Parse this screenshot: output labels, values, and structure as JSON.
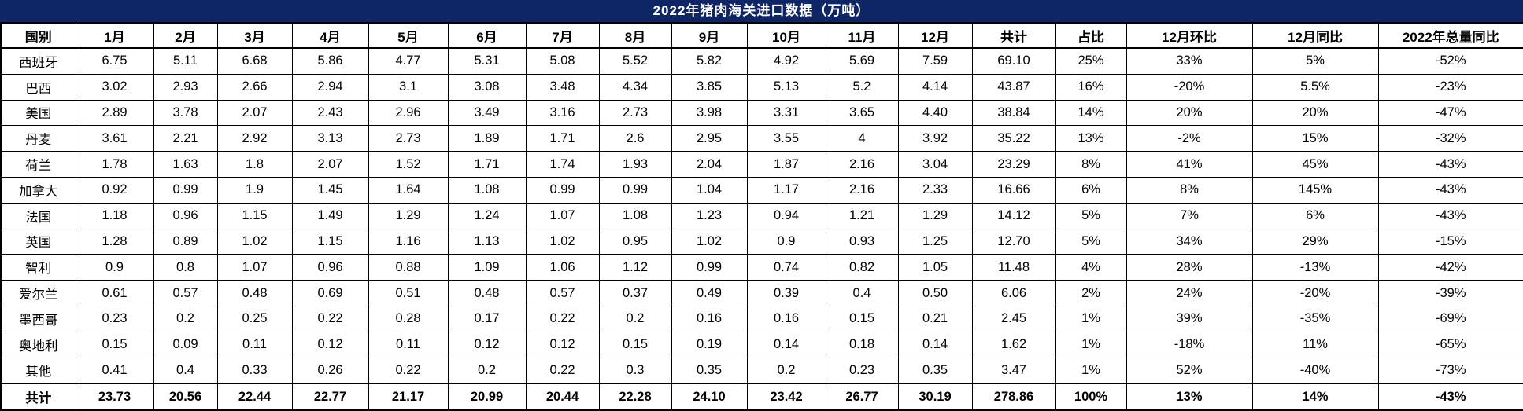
{
  "colors": {
    "title_bar_bg": "#0e2666",
    "title_text": "#ffffff",
    "border": "#000000",
    "cell_bg": "#ffffff",
    "text": "#000000"
  },
  "chart_data": {
    "type": "table",
    "title": "2022年猪肉海关进口数据（万吨）",
    "columns": [
      "国别",
      "1月",
      "2月",
      "3月",
      "4月",
      "5月",
      "6月",
      "7月",
      "8月",
      "9月",
      "10月",
      "11月",
      "12月",
      "共计",
      "占比",
      "12月环比",
      "12月同比",
      "2022年总量同比"
    ],
    "rows": [
      {
        "country": "西班牙",
        "bold": false,
        "values": [
          "6.75",
          "5.11",
          "6.68",
          "5.86",
          "4.77",
          "5.31",
          "5.08",
          "5.52",
          "5.82",
          "4.92",
          "5.69",
          "7.59",
          "69.10",
          "25%",
          "33%",
          "5%",
          "-52%"
        ]
      },
      {
        "country": "巴西",
        "bold": false,
        "values": [
          "3.02",
          "2.93",
          "2.66",
          "2.94",
          "3.1",
          "3.08",
          "3.48",
          "4.34",
          "3.85",
          "5.13",
          "5.2",
          "4.14",
          "43.87",
          "16%",
          "-20%",
          "5.5%",
          "-23%"
        ]
      },
      {
        "country": "美国",
        "bold": false,
        "values": [
          "2.89",
          "3.78",
          "2.07",
          "2.43",
          "2.96",
          "3.49",
          "3.16",
          "2.73",
          "3.98",
          "3.31",
          "3.65",
          "4.40",
          "38.84",
          "14%",
          "20%",
          "20%",
          "-47%"
        ]
      },
      {
        "country": "丹麦",
        "bold": false,
        "values": [
          "3.61",
          "2.21",
          "2.92",
          "3.13",
          "2.73",
          "1.89",
          "1.71",
          "2.6",
          "2.95",
          "3.55",
          "4",
          "3.92",
          "35.22",
          "13%",
          "-2%",
          "15%",
          "-32%"
        ]
      },
      {
        "country": "荷兰",
        "bold": false,
        "values": [
          "1.78",
          "1.63",
          "1.8",
          "2.07",
          "1.52",
          "1.71",
          "1.74",
          "1.93",
          "2.04",
          "1.87",
          "2.16",
          "3.04",
          "23.29",
          "8%",
          "41%",
          "45%",
          "-43%"
        ]
      },
      {
        "country": "加拿大",
        "bold": false,
        "values": [
          "0.92",
          "0.99",
          "1.9",
          "1.45",
          "1.64",
          "1.08",
          "0.99",
          "0.99",
          "1.04",
          "1.17",
          "2.16",
          "2.33",
          "16.66",
          "6%",
          "8%",
          "145%",
          "-43%"
        ]
      },
      {
        "country": "法国",
        "bold": false,
        "values": [
          "1.18",
          "0.96",
          "1.15",
          "1.49",
          "1.29",
          "1.24",
          "1.07",
          "1.08",
          "1.23",
          "0.94",
          "1.21",
          "1.29",
          "14.12",
          "5%",
          "7%",
          "6%",
          "-43%"
        ]
      },
      {
        "country": "英国",
        "bold": false,
        "values": [
          "1.28",
          "0.89",
          "1.02",
          "1.15",
          "1.16",
          "1.13",
          "1.02",
          "0.95",
          "1.02",
          "0.9",
          "0.93",
          "1.25",
          "12.70",
          "5%",
          "34%",
          "29%",
          "-15%"
        ]
      },
      {
        "country": "智利",
        "bold": false,
        "values": [
          "0.9",
          "0.8",
          "1.07",
          "0.96",
          "0.88",
          "1.09",
          "1.06",
          "1.12",
          "0.99",
          "0.74",
          "0.82",
          "1.05",
          "11.48",
          "4%",
          "28%",
          "-13%",
          "-42%"
        ]
      },
      {
        "country": "爱尔兰",
        "bold": false,
        "values": [
          "0.61",
          "0.57",
          "0.48",
          "0.69",
          "0.51",
          "0.48",
          "0.57",
          "0.37",
          "0.49",
          "0.39",
          "0.4",
          "0.50",
          "6.06",
          "2%",
          "24%",
          "-20%",
          "-39%"
        ]
      },
      {
        "country": "墨西哥",
        "bold": false,
        "values": [
          "0.23",
          "0.2",
          "0.25",
          "0.22",
          "0.28",
          "0.17",
          "0.22",
          "0.2",
          "0.16",
          "0.16",
          "0.15",
          "0.21",
          "2.45",
          "1%",
          "39%",
          "-35%",
          "-69%"
        ]
      },
      {
        "country": "奥地利",
        "bold": false,
        "values": [
          "0.15",
          "0.09",
          "0.11",
          "0.12",
          "0.11",
          "0.12",
          "0.12",
          "0.15",
          "0.19",
          "0.14",
          "0.18",
          "0.14",
          "1.62",
          "1%",
          "-18%",
          "11%",
          "-65%"
        ]
      },
      {
        "country": "其他",
        "bold": false,
        "values": [
          "0.41",
          "0.4",
          "0.33",
          "0.26",
          "0.22",
          "0.2",
          "0.22",
          "0.3",
          "0.35",
          "0.2",
          "0.23",
          "0.35",
          "3.47",
          "1%",
          "52%",
          "-40%",
          "-73%"
        ]
      },
      {
        "country": "共计",
        "bold": true,
        "values": [
          "23.73",
          "20.56",
          "22.44",
          "22.77",
          "21.17",
          "20.99",
          "20.44",
          "22.28",
          "24.10",
          "23.42",
          "26.77",
          "30.19",
          "278.86",
          "100%",
          "13%",
          "14%",
          "-43%"
        ]
      }
    ]
  }
}
